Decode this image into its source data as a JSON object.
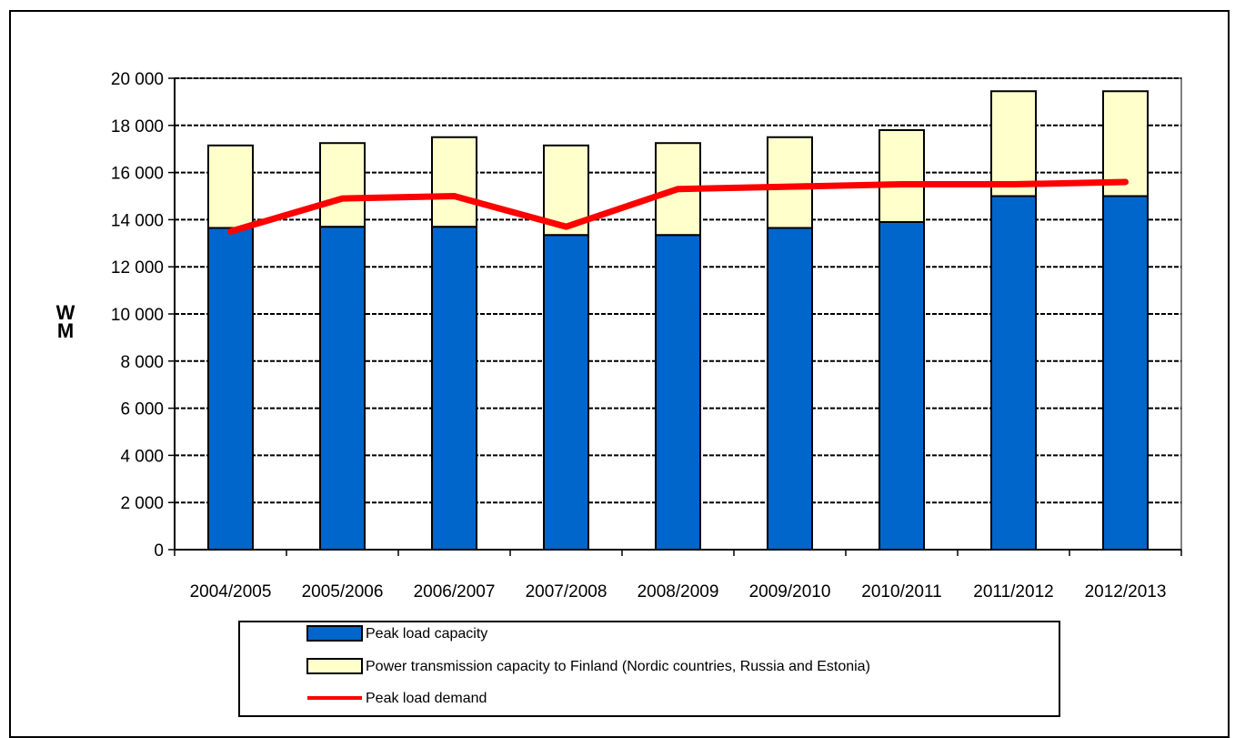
{
  "chart_data": {
    "type": "bar",
    "stacked": true,
    "categories": [
      "2004/2005",
      "2005/2006",
      "2006/2007",
      "2007/2008",
      "2008/2009",
      "2009/2010",
      "2010/2011",
      "2011/2012",
      "2012/2013"
    ],
    "series": [
      {
        "name": "Peak load capacity",
        "kind": "bar",
        "color": "#0066CC",
        "values": [
          13650,
          13700,
          13700,
          13350,
          13350,
          13650,
          13900,
          15000,
          15000
        ]
      },
      {
        "name": "Power transmission capacity to Finland (Nordic countries, Russia and Estonia)",
        "kind": "bar",
        "color": "#FFFFCC",
        "values": [
          3500,
          3550,
          3800,
          3800,
          3900,
          3850,
          3900,
          4450,
          4450
        ]
      },
      {
        "name": "Peak load demand",
        "kind": "line",
        "color": "#FF0000",
        "values": [
          13500,
          14900,
          15000,
          13700,
          15300,
          15400,
          15500,
          15500,
          15600
        ]
      }
    ],
    "ylabel": "MW",
    "ylim": [
      0,
      20000
    ],
    "yticks": [
      0,
      2000,
      4000,
      6000,
      8000,
      10000,
      12000,
      14000,
      16000,
      18000,
      20000
    ],
    "ytick_labels": [
      "0",
      "2 000",
      "4 000",
      "6 000",
      "8 000",
      "10 000",
      "12 000",
      "14 000",
      "16 000",
      "18 000",
      "20 000"
    ],
    "grid": true,
    "legend_position": "bottom"
  }
}
